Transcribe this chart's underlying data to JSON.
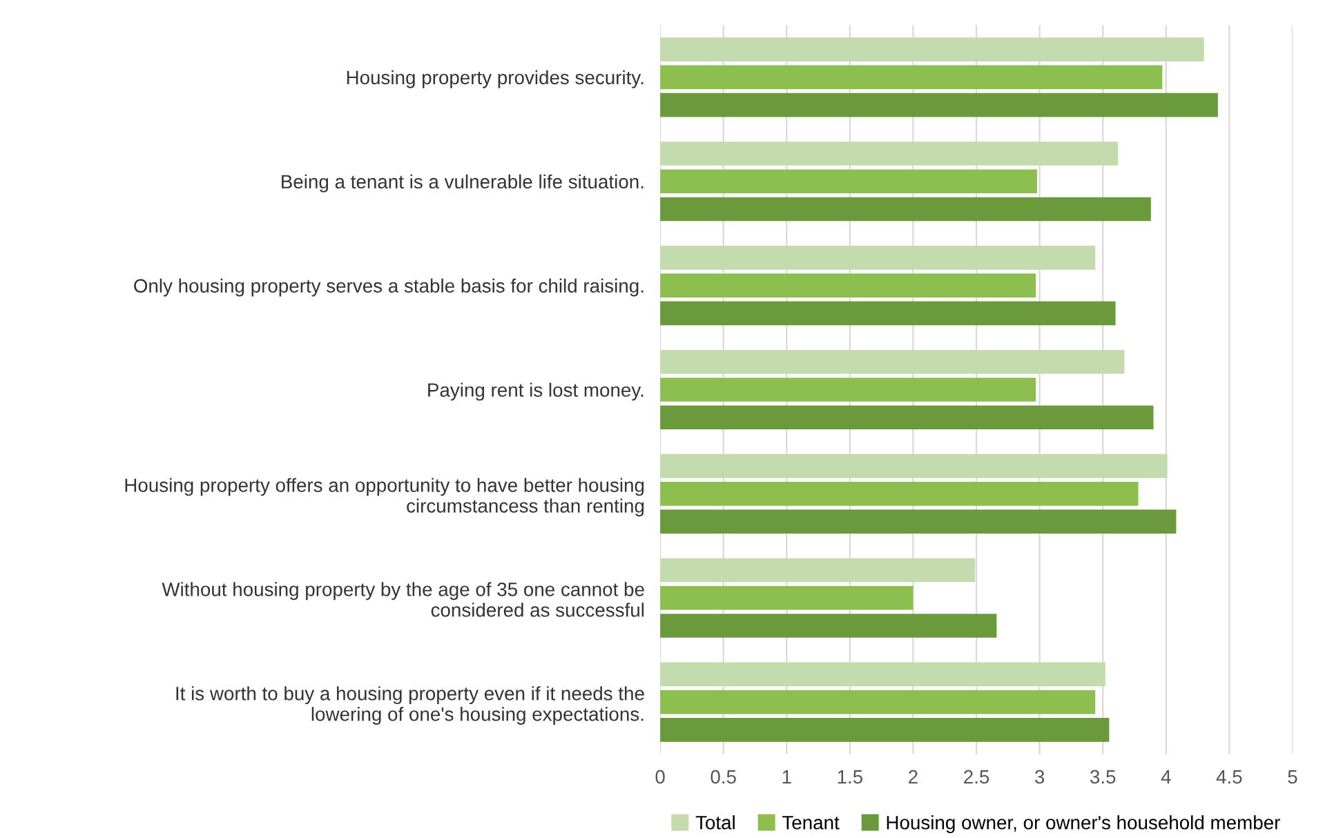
{
  "chart_data": {
    "type": "bar",
    "orientation": "horizontal",
    "categories": [
      "Housing property provides security.",
      "Being a tenant is a vulnerable life situation.",
      "Only housing property serves a stable basis for child raising.",
      "Paying rent is lost money.",
      "Housing property offers an opportunity to have better housing circumstancess than renting",
      "Without housing property by the age of 35 one cannot be considered as successful",
      "It is worth to buy a housing property even if it needs the lowering of one's housing expectations."
    ],
    "series": [
      {
        "name": "Total",
        "color": "#c3dbad",
        "values": [
          4.3,
          3.62,
          3.44,
          3.67,
          4.01,
          2.49,
          3.52
        ]
      },
      {
        "name": "Tenant",
        "color": "#8cbf4f",
        "values": [
          3.97,
          2.98,
          2.97,
          2.97,
          3.78,
          2.0,
          3.44
        ]
      },
      {
        "name": "Housing owner, or owner's household member",
        "color": "#6b9a3c",
        "values": [
          4.41,
          3.88,
          3.6,
          3.9,
          4.08,
          2.66,
          3.55
        ]
      }
    ],
    "xlim": [
      0,
      5
    ],
    "xticks": [
      0,
      0.5,
      1,
      1.5,
      2,
      2.5,
      3,
      3.5,
      4,
      4.5,
      5
    ],
    "grid": "x",
    "legend": "bottom"
  }
}
